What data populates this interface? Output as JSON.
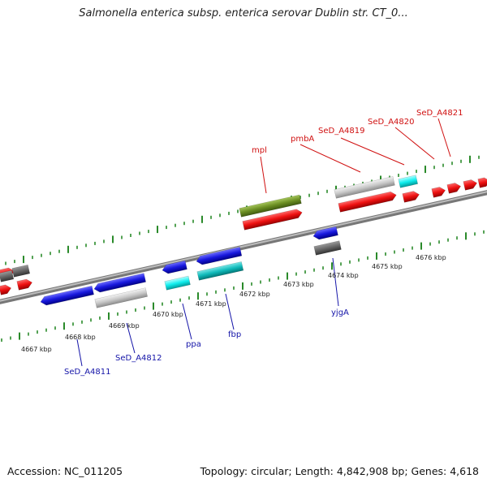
{
  "title": "Salmonella enterica subsp. enterica serovar Dublin str. CT_0...",
  "footer": {
    "accession": "Accession: NC_011205",
    "summary": "Topology: circular; Length: 4,842,908 bp; Genes: 4,618"
  },
  "colors": {
    "backbone": "#8a8a8a",
    "tick": "#2a8a2a",
    "forward_label": "#d01010",
    "reverse_label": "#1414a8"
  },
  "kbp_ticks": [
    "4667 kbp",
    "4668 kbp",
    "4669 kbp",
    "4670 kbp",
    "4671 kbp",
    "4672 kbp",
    "4673 kbp",
    "4674 kbp",
    "4675 kbp",
    "4676 kbp"
  ],
  "forward_labels": [
    "mpl",
    "pmbA",
    "SeD_A4819",
    "SeD_A4820",
    "SeD_A4821"
  ],
  "reverse_labels": [
    "SeD_A4811",
    "SeD_A4812",
    "ppa",
    "fbp",
    "yjgA"
  ],
  "gene_colors": {
    "red": "#ee1111",
    "blue": "#1818dd",
    "cyan": "#11dddd",
    "teal": "#11bbbb",
    "olive": "#6b8e23",
    "lightgray": "#c8c8c8",
    "darkgray": "#666666"
  }
}
